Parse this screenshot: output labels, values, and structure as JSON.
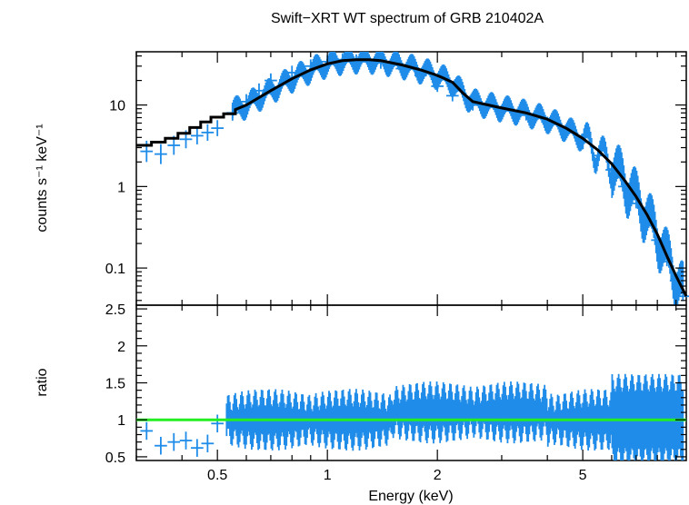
{
  "chart_data": [
    {
      "panel": "spectrum",
      "type": "line",
      "title": "Swift−XRT WT spectrum of GRB 210402A",
      "xlabel": "Energy (keV)",
      "ylabel": "counts s⁻¹ keV⁻¹",
      "x_scale": "log",
      "y_scale": "log",
      "xlim": [
        0.3,
        9.6
      ],
      "ylim": [
        0.035,
        45
      ],
      "y_ticks": [
        0.1,
        1,
        10
      ],
      "y_tick_labels": [
        "0.1",
        "1",
        "10"
      ],
      "x_ticks": [
        0.5,
        1,
        2,
        5
      ],
      "grid": false,
      "legend": "none",
      "colors": {
        "data": "#1e8ce8",
        "model": "#000000"
      },
      "series": [
        {
          "kind": "data",
          "x": [
            0.32,
            0.35,
            0.38,
            0.41,
            0.44,
            0.47,
            0.5,
            0.55,
            0.6,
            0.65,
            0.7,
            0.8,
            0.9,
            1.0,
            1.1,
            1.2,
            1.3,
            1.4,
            1.6,
            1.8,
            2.0,
            2.2,
            2.5,
            3.0,
            3.5,
            4.0,
            4.5,
            5.0,
            5.5,
            6.0,
            6.5,
            7.0,
            7.5,
            8.0,
            8.5,
            9.0,
            9.4
          ],
          "y": [
            2.7,
            2.5,
            3.2,
            3.8,
            4.2,
            4.6,
            5.2,
            8.0,
            11,
            15,
            20,
            25,
            30,
            34,
            36,
            35,
            34,
            33,
            28,
            23,
            17,
            13,
            10,
            8.5,
            7.5,
            6.2,
            4.8,
            3.5,
            2.4,
            1.6,
            1.0,
            0.62,
            0.38,
            0.22,
            0.12,
            0.07,
            0.045
          ]
        },
        {
          "kind": "model",
          "x": [
            0.3,
            0.33,
            0.36,
            0.39,
            0.42,
            0.45,
            0.48,
            0.52,
            0.56,
            0.6,
            0.7,
            0.8,
            0.9,
            1.0,
            1.1,
            1.2,
            1.3,
            1.4,
            1.6,
            1.8,
            1.95,
            2.05,
            2.2,
            2.35,
            2.5,
            3.0,
            3.5,
            4.0,
            4.5,
            5.0,
            5.5,
            6.0,
            6.5,
            7.0,
            7.5,
            8.0,
            8.5,
            9.0,
            9.6
          ],
          "y": [
            3.2,
            3.5,
            3.9,
            4.5,
            5.3,
            6.2,
            7.1,
            7.8,
            8.8,
            10,
            15,
            21,
            27,
            32,
            35,
            36,
            36,
            35,
            31,
            27,
            24,
            22,
            19,
            14,
            11,
            9.2,
            8.0,
            6.7,
            5.2,
            3.9,
            2.8,
            1.9,
            1.2,
            0.75,
            0.45,
            0.26,
            0.14,
            0.08,
            0.045
          ]
        }
      ]
    },
    {
      "panel": "ratio",
      "type": "line",
      "xlabel": "Energy (keV)",
      "ylabel": "ratio",
      "x_scale": "log",
      "y_scale": "linear",
      "xlim": [
        0.3,
        9.6
      ],
      "ylim": [
        0.45,
        2.55
      ],
      "x_ticks": [
        0.5,
        1,
        2,
        5
      ],
      "x_tick_labels": [
        "0.5",
        "1",
        "2",
        "5"
      ],
      "y_ticks": [
        0.5,
        1,
        1.5,
        2,
        2.5
      ],
      "y_tick_labels": [
        "0.5",
        "1",
        "1.5",
        "2",
        "2.5"
      ],
      "grid": false,
      "legend": "none",
      "colors": {
        "data": "#1e8ce8",
        "unity": "#22ee22"
      },
      "unity_value": 1,
      "series": [
        {
          "kind": "data",
          "x": [
            0.32,
            0.35,
            0.38,
            0.41,
            0.44,
            0.47,
            0.5,
            0.6,
            0.7,
            0.8,
            0.9,
            1.0,
            1.2,
            1.4,
            1.6,
            1.8,
            2.0,
            2.2,
            2.5,
            3.0,
            3.5,
            4.0,
            4.5,
            5.0,
            6.0,
            7.0,
            8.0,
            8.5,
            9.0
          ],
          "y": [
            0.85,
            0.65,
            0.7,
            0.72,
            0.62,
            0.68,
            0.95,
            1.05,
            1.0,
            1.1,
            1.15,
            1.0,
            0.95,
            1.05,
            1.08,
            1.1,
            1.15,
            1.1,
            1.12,
            1.08,
            1.05,
            1.0,
            1.02,
            0.98,
            1.0,
            1.05,
            1.1,
            1.3,
            1.0
          ]
        }
      ]
    }
  ]
}
